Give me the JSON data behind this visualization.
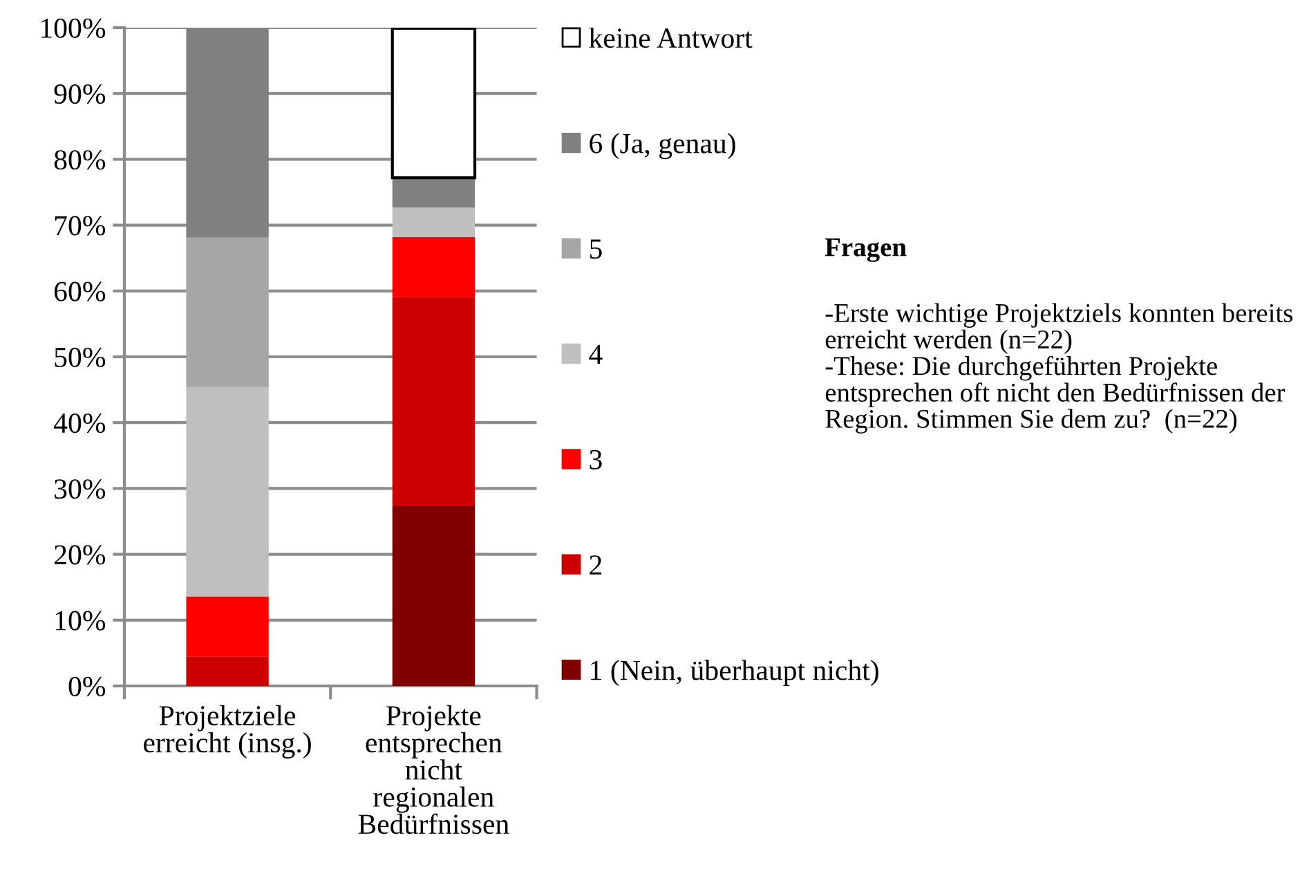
{
  "chart_data": {
    "type": "bar",
    "stacked": true,
    "categories": [
      "Projektziele\nerreicht (insg.)",
      "Projekte\nentsprechen\nnicht\nregionalen\nBedürfnissen"
    ],
    "series": [
      {
        "name": "1 (Nein, überhaupt nicht)",
        "color": "#800000",
        "values": [
          0,
          27.3
        ]
      },
      {
        "name": "2",
        "color": "#cc0000",
        "values": [
          4.5,
          31.8
        ]
      },
      {
        "name": "3",
        "color": "#ff0000",
        "values": [
          9.1,
          9.1
        ]
      },
      {
        "name": "4",
        "color": "#bfbfbf",
        "values": [
          31.8,
          4.5
        ]
      },
      {
        "name": "5",
        "color": "#a6a6a6",
        "values": [
          22.7,
          0
        ]
      },
      {
        "name": "6 (Ja, genau)",
        "color": "#808080",
        "values": [
          31.8,
          4.5
        ]
      },
      {
        "name": "keine Antwort",
        "color": "#ffffff",
        "values": [
          0,
          22.7
        ]
      }
    ],
    "ylim": [
      0,
      100
    ],
    "yticks": [
      {
        "value": 0,
        "label": "0%"
      },
      {
        "value": 10,
        "label": "10%"
      },
      {
        "value": 20,
        "label": "20%"
      },
      {
        "value": 30,
        "label": "30%"
      },
      {
        "value": 40,
        "label": "40%"
      },
      {
        "value": 50,
        "label": "50%"
      },
      {
        "value": 60,
        "label": "60%"
      },
      {
        "value": 70,
        "label": "70%"
      },
      {
        "value": 80,
        "label": "80%"
      },
      {
        "value": 90,
        "label": "90%"
      },
      {
        "value": 100,
        "label": "100%"
      }
    ],
    "grid": "y",
    "legend": "right",
    "annotations": [
      "Fragen",
      "-Erste wichtige Projektziels konnten bereits erreicht werden (n=22)\n-These: Die durchgeführten Projekte entsprechen oft nicht den Bedürfnissen der Region. Stimmen Sie dem zu?  (n=22)"
    ]
  }
}
